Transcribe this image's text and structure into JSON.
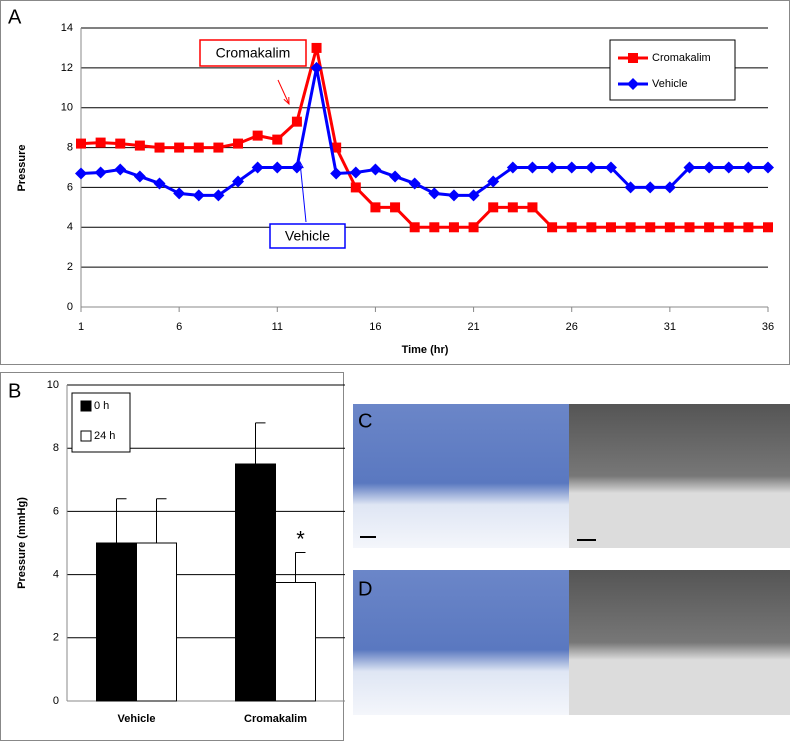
{
  "chart_data": [
    {
      "type": "line",
      "panel": "A",
      "x_label": "Time (hr)",
      "y_label": "Pressure",
      "x": [
        1,
        2,
        3,
        4,
        5,
        6,
        7,
        8,
        9,
        10,
        11,
        12,
        13,
        14,
        15,
        16,
        17,
        18,
        19,
        20,
        21,
        22,
        23,
        24,
        25,
        26,
        27,
        28,
        29,
        30,
        31,
        32,
        33,
        34,
        35,
        36
      ],
      "xlim": [
        1,
        36
      ],
      "xticks": [
        1,
        6,
        11,
        16,
        21,
        26,
        31,
        36
      ],
      "ylim": [
        0,
        14
      ],
      "yticks": [
        0,
        2,
        4,
        6,
        8,
        10,
        12,
        14
      ],
      "grid": true,
      "legend": "top-right",
      "series": [
        {
          "name": "Cromakalim",
          "color": "#ff0000",
          "marker": "square",
          "values": [
            8.2,
            8.25,
            8.2,
            8.1,
            8.0,
            8.0,
            8.0,
            8.0,
            8.2,
            8.6,
            8.4,
            9.3,
            13,
            8.0,
            6.0,
            5.0,
            5.0,
            4,
            4,
            4,
            4,
            5,
            5,
            5,
            4,
            4,
            4,
            4,
            4,
            4,
            4,
            4,
            4,
            4,
            4,
            4
          ]
        },
        {
          "name": "Vehicle",
          "color": "#0000ff",
          "marker": "diamond",
          "values": [
            6.7,
            6.75,
            6.9,
            6.55,
            6.2,
            5.7,
            5.6,
            5.6,
            6.3,
            7,
            7,
            7,
            12,
            6.7,
            6.75,
            6.9,
            6.55,
            6.2,
            5.7,
            5.6,
            5.6,
            6.3,
            7,
            7,
            7,
            7,
            7,
            7,
            6,
            6,
            6,
            7,
            7,
            7,
            7,
            7
          ]
        }
      ],
      "annotations": [
        {
          "text": "Cromakalim",
          "color": "#ff0000"
        },
        {
          "text": "Vehicle",
          "color": "#0000ff"
        }
      ]
    },
    {
      "type": "bar",
      "panel": "B",
      "y_label": "Pressure (mmHg)",
      "categories": [
        "Vehicle",
        "Cromakalim"
      ],
      "ylim": [
        0,
        10
      ],
      "yticks": [
        0,
        2,
        4,
        6,
        8,
        10
      ],
      "grid": true,
      "legend": "top-left",
      "series": [
        {
          "name": "0 h",
          "color": "#000000",
          "values": [
            5,
            7.5
          ],
          "errors": [
            1.4,
            1.3
          ]
        },
        {
          "name": "24 h",
          "color": "#ffffff",
          "values": [
            5,
            3.75
          ],
          "errors": [
            1.4,
            0.95
          ]
        }
      ],
      "annotation": "*"
    }
  ],
  "images": [
    {
      "label": "C"
    },
    {
      "label": "D"
    }
  ]
}
